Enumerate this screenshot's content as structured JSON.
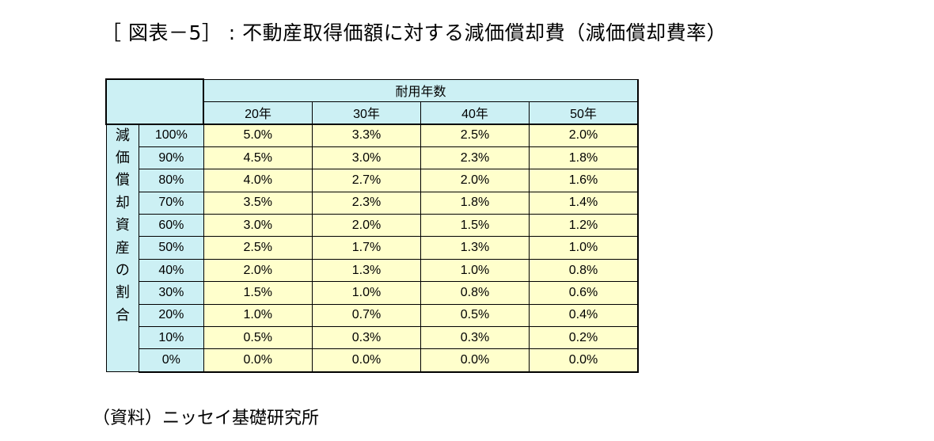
{
  "title": "［ 図表－5］ : 不動産取得価額に対する減価償却費（減価償却費率）",
  "table": {
    "group_header": "耐用年数",
    "columns": [
      "20年",
      "30年",
      "40年",
      "50年"
    ],
    "row_group_label": "減価償却資産の割合",
    "rows": [
      {
        "label": "100%",
        "values": [
          "5.0%",
          "3.3%",
          "2.5%",
          "2.0%"
        ]
      },
      {
        "label": "90%",
        "values": [
          "4.5%",
          "3.0%",
          "2.3%",
          "1.8%"
        ]
      },
      {
        "label": "80%",
        "values": [
          "4.0%",
          "2.7%",
          "2.0%",
          "1.6%"
        ]
      },
      {
        "label": "70%",
        "values": [
          "3.5%",
          "2.3%",
          "1.8%",
          "1.4%"
        ]
      },
      {
        "label": "60%",
        "values": [
          "3.0%",
          "2.0%",
          "1.5%",
          "1.2%"
        ]
      },
      {
        "label": "50%",
        "values": [
          "2.5%",
          "1.7%",
          "1.3%",
          "1.0%"
        ]
      },
      {
        "label": "40%",
        "values": [
          "2.0%",
          "1.3%",
          "1.0%",
          "0.8%"
        ]
      },
      {
        "label": "30%",
        "values": [
          "1.5%",
          "1.0%",
          "0.8%",
          "0.6%"
        ]
      },
      {
        "label": "20%",
        "values": [
          "1.0%",
          "0.7%",
          "0.5%",
          "0.4%"
        ]
      },
      {
        "label": "10%",
        "values": [
          "0.5%",
          "0.3%",
          "0.3%",
          "0.2%"
        ]
      },
      {
        "label": "0%",
        "values": [
          "0.0%",
          "0.0%",
          "0.0%",
          "0.0%"
        ]
      }
    ]
  },
  "source": "（資料）ニッセイ基礎研究所",
  "colors": {
    "header_fill": "#ccf0f4",
    "cell_fill": "#ffffcc",
    "border": "#000000"
  }
}
